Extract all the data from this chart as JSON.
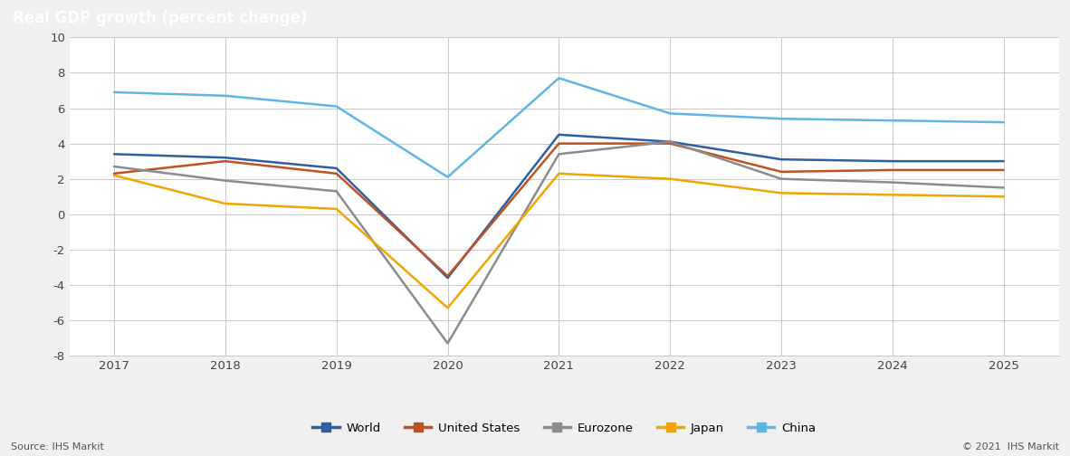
{
  "title": "Real GDP growth (percent change)",
  "title_bg_color": "#808080",
  "title_text_color": "#ffffff",
  "years": [
    2017,
    2018,
    2019,
    2020,
    2021,
    2022,
    2023,
    2024,
    2025
  ],
  "series": {
    "World": {
      "values": [
        3.4,
        3.2,
        2.6,
        -3.6,
        4.5,
        4.1,
        3.1,
        3.0,
        3.0
      ],
      "color": "#2e5fa3",
      "linewidth": 1.8
    },
    "United States": {
      "values": [
        2.3,
        3.0,
        2.3,
        -3.5,
        4.0,
        4.0,
        2.4,
        2.5,
        2.5
      ],
      "color": "#c0521f",
      "linewidth": 1.8
    },
    "Eurozone": {
      "values": [
        2.7,
        1.9,
        1.3,
        -7.3,
        3.4,
        4.1,
        2.0,
        1.8,
        1.5
      ],
      "color": "#8c8c8c",
      "linewidth": 1.8
    },
    "Japan": {
      "values": [
        2.2,
        0.6,
        0.3,
        -5.3,
        2.3,
        2.0,
        1.2,
        1.1,
        1.0
      ],
      "color": "#f0a500",
      "linewidth": 1.8
    },
    "China": {
      "values": [
        6.9,
        6.7,
        6.1,
        2.1,
        7.7,
        5.7,
        5.4,
        5.3,
        5.2
      ],
      "color": "#5eb6e4",
      "linewidth": 1.8
    }
  },
  "ylim": [
    -8,
    10
  ],
  "yticks": [
    -8,
    -6,
    -4,
    -2,
    0,
    2,
    4,
    6,
    8,
    10
  ],
  "bg_color": "#ffffff",
  "plot_bg_color": "#ffffff",
  "outer_bg_color": "#f0f0f0",
  "grid_color": "#c8c8c8",
  "source_text": "Source: IHS Markit",
  "copyright_text": "© 2021  IHS Markit",
  "legend_order": [
    "World",
    "United States",
    "Eurozone",
    "Japan",
    "China"
  ]
}
